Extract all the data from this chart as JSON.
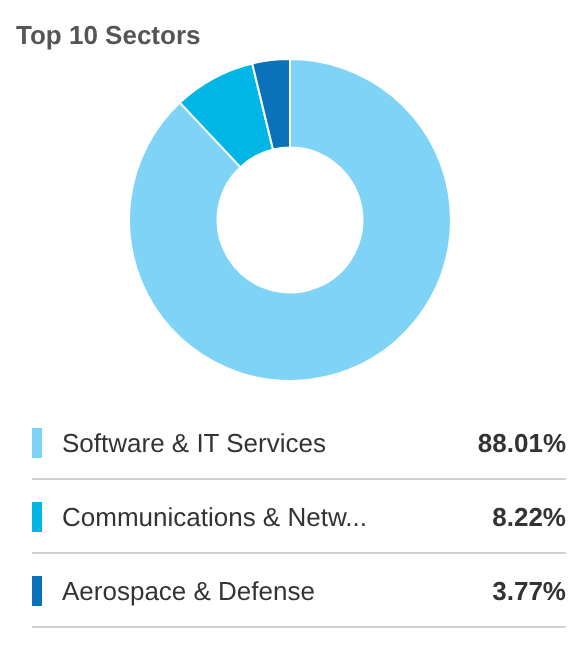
{
  "chart_data": {
    "type": "donut",
    "title": "Top 10 Sectors",
    "categories": [
      "Software & IT Services",
      "Communications & Netw...",
      "Aerospace & Defense"
    ],
    "values": [
      88.01,
      8.22,
      3.77
    ],
    "colors": [
      "#7fd3f7",
      "#00b6e6",
      "#0a72b8"
    ],
    "value_labels": [
      "88.01%",
      "8.22%",
      "3.77%"
    ],
    "legend": "bottom"
  }
}
